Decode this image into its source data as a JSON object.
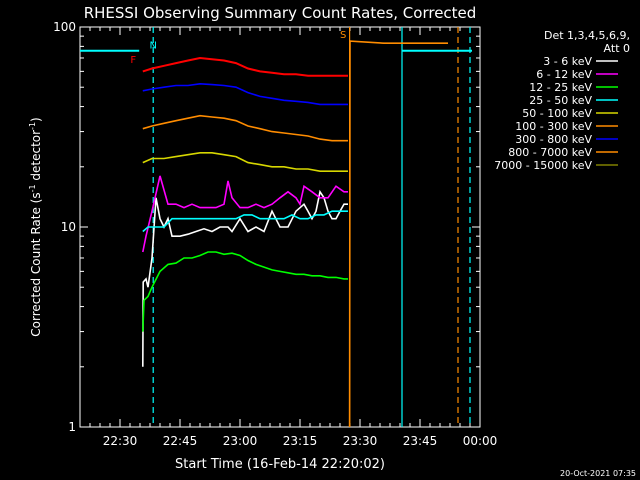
{
  "chart_data": {
    "type": "line",
    "title": "RHESSI Observing Summary Count Rates, Corrected",
    "xlabel": "Start Time (16-Feb-14 22:20:02)",
    "ylabel_main": "Corrected Count Rate (s",
    "ylabel_sup1": "-1",
    "ylabel_mid": " detector",
    "ylabel_sup2": "-1",
    "ylabel_end": ")",
    "xlim": [
      0,
      100
    ],
    "ylim": [
      1,
      100
    ],
    "yscale": "log",
    "xticks": [
      {
        "value": 10,
        "label": "22:30"
      },
      {
        "value": 25,
        "label": "22:45"
      },
      {
        "value": 40,
        "label": "23:00"
      },
      {
        "value": 55,
        "label": "23:15"
      },
      {
        "value": 70,
        "label": "23:30"
      },
      {
        "value": 85,
        "label": "23:45"
      },
      {
        "value": 100,
        "label": "00:00"
      }
    ],
    "yticks": [
      {
        "value": 1,
        "label": "1"
      },
      {
        "value": 10,
        "label": "10"
      },
      {
        "value": 100,
        "label": "100"
      }
    ],
    "legend_header": [
      "Det 1,3,4,5,6,9,",
      "Att 0"
    ],
    "legend_position": "right",
    "series": [
      {
        "name": "3 - 6 keV",
        "color": "#ffffff",
        "x": [
          15.7,
          15.8,
          16.5,
          17,
          18,
          19,
          20,
          21,
          22,
          23,
          25,
          27,
          29,
          31,
          33,
          35,
          37,
          38,
          40,
          42,
          44,
          46,
          48,
          50,
          52,
          54,
          56,
          57,
          58,
          59,
          60,
          61,
          62,
          63,
          64,
          65,
          66,
          67
        ],
        "y": [
          2,
          5.3,
          5.5,
          5,
          7,
          14,
          11,
          10,
          11,
          9,
          9,
          9.2,
          9.5,
          9.8,
          9.5,
          10,
          10,
          9.5,
          11,
          9.5,
          10,
          9.5,
          12,
          10,
          10,
          12,
          13,
          12,
          11,
          12,
          15,
          14,
          12,
          11,
          11,
          12,
          13,
          13
        ]
      },
      {
        "name": "6 - 12 keV",
        "color": "#ff00ff",
        "x": [
          15.7,
          16.5,
          18,
          20,
          22,
          24,
          26,
          28,
          30,
          32,
          34,
          36,
          37,
          38,
          40,
          42,
          44,
          46,
          48,
          50,
          52,
          54,
          55,
          56,
          58,
          60,
          62,
          64,
          66,
          67
        ],
        "y": [
          7.5,
          9,
          12,
          18,
          13,
          13,
          12.5,
          13,
          12.5,
          12.5,
          12.5,
          13,
          17,
          14,
          12.5,
          12.5,
          13,
          12.5,
          13,
          14,
          15,
          14,
          13,
          16,
          15,
          14,
          14,
          16,
          15,
          15
        ]
      },
      {
        "name": "12 - 25 keV",
        "color": "#00ff00",
        "x": [
          15.7,
          16,
          17,
          18,
          20,
          22,
          24,
          26,
          28,
          30,
          32,
          34,
          36,
          38,
          40,
          42,
          44,
          46,
          48,
          50,
          52,
          54,
          56,
          58,
          60,
          62,
          64,
          66,
          67
        ],
        "y": [
          3,
          4.3,
          4.5,
          5,
          6,
          6.5,
          6.6,
          7,
          7,
          7.2,
          7.5,
          7.5,
          7.3,
          7.4,
          7.2,
          6.8,
          6.5,
          6.3,
          6.1,
          6,
          5.9,
          5.8,
          5.8,
          5.7,
          5.7,
          5.6,
          5.6,
          5.5,
          5.5
        ]
      },
      {
        "name": "25 - 50 keV",
        "color": "#00ffff",
        "x": [
          15.7,
          17,
          19,
          21,
          23,
          25,
          27,
          29,
          31,
          33,
          35,
          37,
          39,
          41,
          43,
          45,
          47,
          49,
          51,
          53,
          55,
          57,
          59,
          61,
          63,
          65,
          67
        ],
        "y": [
          9.5,
          10,
          10,
          10,
          11,
          11,
          11,
          11,
          11,
          11,
          11,
          11,
          11,
          11.5,
          11.5,
          11,
          11,
          11,
          11,
          11.5,
          11,
          11,
          11.5,
          11.5,
          12,
          12,
          12
        ]
      },
      {
        "name": "50 - 100 keV",
        "color": "#d7d700",
        "x": [
          15.7,
          18,
          21,
          24,
          27,
          30,
          33,
          36,
          39,
          42,
          45,
          48,
          51,
          54,
          57,
          60,
          63,
          67
        ],
        "y": [
          21,
          22,
          22,
          22.5,
          23,
          23.5,
          23.5,
          23,
          22.5,
          21,
          20.5,
          20,
          20,
          19.5,
          19.5,
          19,
          19,
          19
        ]
      },
      {
        "name": "100 - 300 keV",
        "color": "#ff8c00",
        "x": [
          15.7,
          18,
          21,
          24,
          27,
          30,
          33,
          36,
          39,
          42,
          45,
          48,
          51,
          54,
          57,
          60,
          63,
          67
        ],
        "y": [
          31,
          32,
          33,
          34,
          35,
          36,
          35.5,
          35,
          34,
          32,
          31,
          30,
          29.5,
          29,
          28.5,
          27.5,
          27,
          27
        ]
      },
      {
        "name": "300 - 800 keV",
        "color": "#0000ff",
        "x": [
          15.7,
          18,
          21,
          24,
          27,
          30,
          33,
          36,
          39,
          42,
          45,
          48,
          51,
          54,
          57,
          60,
          63,
          67
        ],
        "y": [
          48,
          49,
          50,
          51,
          51,
          52,
          51.5,
          51,
          50,
          47,
          45,
          44,
          43,
          42.5,
          42,
          41,
          41,
          41
        ]
      },
      {
        "name": "800 - 7000 keV",
        "color": "#ff8c00",
        "x": [
          67.4,
          67.5,
          76,
          92,
          92.3,
          92.5,
          100
        ],
        "y": [
          1,
          85,
          83,
          83,
          null,
          null,
          null
        ]
      },
      {
        "name": "7000 - 15000 keV",
        "color": "#808000",
        "x": [],
        "y": []
      }
    ],
    "extra_lines": [
      {
        "color": "#ff0000",
        "label": "F",
        "x": [
          15.7,
          18,
          21,
          24,
          27,
          30,
          33,
          36,
          39,
          42,
          45,
          48,
          51,
          54,
          57,
          60,
          63,
          67
        ],
        "y": [
          60,
          62,
          64,
          66,
          68,
          70,
          69,
          68,
          66,
          62,
          60,
          59,
          58,
          58,
          57,
          57,
          57,
          57
        ]
      },
      {
        "color": "#00ffff",
        "x": [
          0,
          14.8
        ],
        "y": [
          76,
          76
        ]
      },
      {
        "color": "#00ffff",
        "x": [
          80.5,
          98
        ],
        "y": [
          76,
          76
        ]
      }
    ],
    "flag_labels": [
      {
        "text": "F",
        "color": "#ff0000",
        "x": 13.3,
        "y": 66
      },
      {
        "text": "N",
        "color": "#00ffff",
        "x": 18.3,
        "y": 78
      },
      {
        "text": "S",
        "color": "#ff8c00",
        "x": 65.8,
        "y": 88
      }
    ],
    "vertical_lines": [
      {
        "x": 18.3,
        "color": "#00ffff",
        "style": "dashed"
      },
      {
        "x": 67.4,
        "color": "#ff8c00",
        "style": "solid"
      },
      {
        "x": 80.5,
        "color": "#00ffff",
        "style": "solid"
      },
      {
        "x": 94.5,
        "color": "#ff8c00",
        "style": "dashed"
      },
      {
        "x": 97.5,
        "color": "#00ffff",
        "style": "dashed"
      }
    ],
    "footer_stamp": "20-Oct-2021 07:35"
  }
}
